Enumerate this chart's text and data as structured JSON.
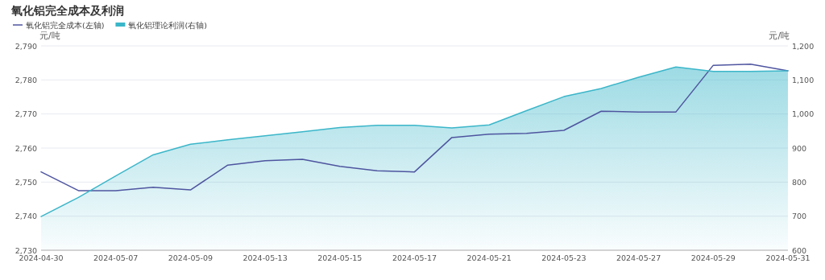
{
  "chart_data": {
    "type": "line",
    "title": "氧化铝完全成本及利润",
    "ylabel": "元/吨",
    "y2label": "元/吨",
    "categories": [
      "2024-04-30",
      null,
      "2024-05-07",
      null,
      "2024-05-09",
      null,
      "2024-05-13",
      null,
      "2024-05-15",
      null,
      "2024-05-17",
      null,
      "2024-05-21",
      null,
      "2024-05-23",
      null,
      "2024-05-27",
      null,
      "2024-05-29",
      null,
      "2024-05-31"
    ],
    "series": [
      {
        "name": "氧化铝完全成本(左轴)",
        "axis": "y",
        "color": "#4e559f",
        "values": [
          2753,
          2747.5,
          2747.5,
          2748.5,
          2747.7,
          2755,
          2756.3,
          2756.7,
          2754.6,
          2753.3,
          2753,
          2763.1,
          2764.1,
          2764.3,
          2765.2,
          2770.8,
          2770.6,
          2770.6,
          2784.3,
          2784.6,
          2782.7
        ]
      },
      {
        "name": "氧化铝理论利润(右轴)",
        "type": "area",
        "axis": "y2",
        "color": "#3bb6c9",
        "values": [
          699,
          755,
          818,
          880,
          911,
          924,
          936,
          948,
          960,
          967,
          967,
          959,
          968,
          1010,
          1051,
          1075,
          1108,
          1138,
          1125,
          1125,
          1127
        ]
      }
    ],
    "ylim": [
      2730,
      2790
    ],
    "yticks": [
      {
        "value": 2730,
        "label": "2,730"
      },
      {
        "value": 2740,
        "label": "2,740"
      },
      {
        "value": 2750,
        "label": "2,750"
      },
      {
        "value": 2760,
        "label": "2,760"
      },
      {
        "value": 2770,
        "label": "2,770"
      },
      {
        "value": 2780,
        "label": "2,780"
      },
      {
        "value": 2790,
        "label": "2,790"
      }
    ],
    "y2lim": [
      600,
      1200
    ],
    "y2ticks": [
      600,
      700,
      800,
      900,
      {
        "value": 1000,
        "label": "1,000"
      },
      {
        "value": 1100,
        "label": "1,100"
      },
      {
        "value": 1200,
        "label": "1,200"
      }
    ],
    "grid": "y",
    "legend": "top left"
  }
}
